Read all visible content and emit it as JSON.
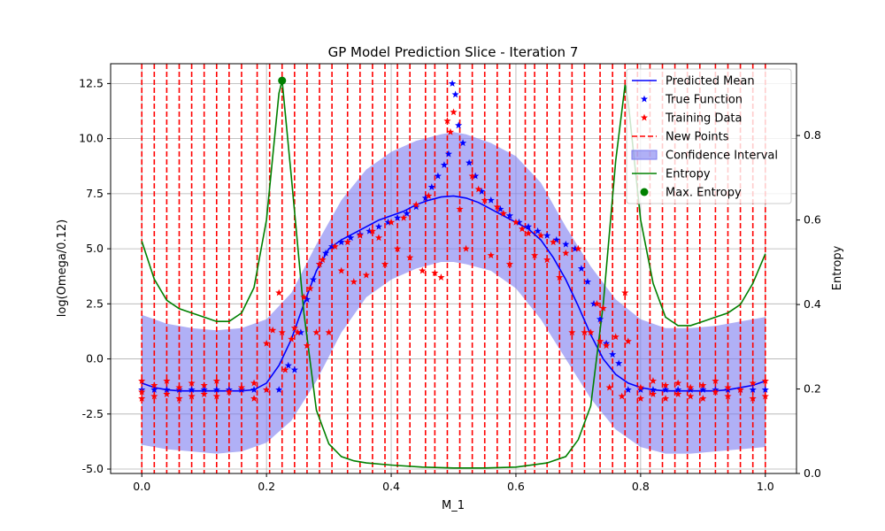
{
  "chart_data": {
    "type": "line",
    "title": "GP Model Prediction Slice - Iteration 7",
    "xlabel": "M_1",
    "ylabel": "log(Omega/0.12)",
    "y2label": "Entropy",
    "xlim": [
      -0.05,
      1.05
    ],
    "ylim": [
      -5.2,
      13.4
    ],
    "y2lim": [
      0,
      0.97
    ],
    "grid": true,
    "legend_position": "top-right",
    "x_ticks": [
      "0.0",
      "0.2",
      "0.4",
      "0.6",
      "0.8",
      "1.0"
    ],
    "y_ticks": [
      "-5.0",
      "-2.5",
      "0.0",
      "2.5",
      "5.0",
      "7.5",
      "10.0",
      "12.5"
    ],
    "y2_ticks": [
      "0.0",
      "0.2",
      "0.4",
      "0.6",
      "0.8"
    ],
    "colors": {
      "mean": "#0000ff",
      "true": "#0000ff",
      "training": "#ff0000",
      "new_points": "#ff0000",
      "confidence_fill": "#7b7bf0",
      "entropy": "#008000",
      "max_entropy": "#008000"
    },
    "series": [
      {
        "name": "Predicted Mean",
        "style": "line",
        "x": [
          0,
          0.02,
          0.04,
          0.06,
          0.08,
          0.1,
          0.12,
          0.14,
          0.16,
          0.18,
          0.2,
          0.22,
          0.24,
          0.26,
          0.28,
          0.3,
          0.32,
          0.34,
          0.36,
          0.38,
          0.4,
          0.42,
          0.44,
          0.46,
          0.48,
          0.5,
          0.52,
          0.54,
          0.56,
          0.58,
          0.6,
          0.62,
          0.64,
          0.66,
          0.68,
          0.7,
          0.72,
          0.74,
          0.76,
          0.78,
          0.8,
          0.82,
          0.84,
          0.86,
          0.88,
          0.9,
          0.92,
          0.94,
          0.96,
          0.98,
          1.0
        ],
        "y": [
          -1.1,
          -1.3,
          -1.4,
          -1.45,
          -1.45,
          -1.45,
          -1.45,
          -1.45,
          -1.45,
          -1.4,
          -1.1,
          -0.3,
          0.9,
          2.5,
          4.0,
          5.0,
          5.4,
          5.7,
          6.0,
          6.3,
          6.5,
          6.7,
          7.0,
          7.2,
          7.35,
          7.4,
          7.3,
          7.1,
          6.8,
          6.5,
          6.2,
          5.9,
          5.4,
          4.6,
          3.6,
          2.4,
          1.1,
          0.0,
          -0.7,
          -1.1,
          -1.3,
          -1.4,
          -1.45,
          -1.45,
          -1.45,
          -1.45,
          -1.45,
          -1.4,
          -1.3,
          -1.2,
          -1.0
        ]
      },
      {
        "name": "True Function",
        "style": "star",
        "x": [
          0,
          0.02,
          0.04,
          0.06,
          0.08,
          0.1,
          0.12,
          0.14,
          0.16,
          0.18,
          0.2,
          0.22,
          0.235,
          0.245,
          0.255,
          0.265,
          0.275,
          0.285,
          0.295,
          0.305,
          0.32,
          0.335,
          0.35,
          0.365,
          0.38,
          0.395,
          0.41,
          0.425,
          0.44,
          0.455,
          0.465,
          0.475,
          0.485,
          0.492,
          0.498,
          0.503,
          0.508,
          0.515,
          0.525,
          0.535,
          0.545,
          0.56,
          0.575,
          0.59,
          0.605,
          0.62,
          0.635,
          0.65,
          0.665,
          0.68,
          0.695,
          0.705,
          0.715,
          0.725,
          0.735,
          0.745,
          0.755,
          0.765,
          0.78,
          0.8,
          0.82,
          0.84,
          0.86,
          0.88,
          0.9,
          0.92,
          0.94,
          0.96,
          0.98,
          1.0
        ],
        "y": [
          -1.4,
          -1.4,
          -1.4,
          -1.4,
          -1.4,
          -1.4,
          -1.4,
          -1.4,
          -1.4,
          -1.4,
          -1.4,
          -1.4,
          -0.3,
          -0.5,
          1.2,
          2.7,
          3.6,
          4.3,
          4.8,
          5.1,
          5.3,
          5.5,
          5.65,
          5.8,
          6.0,
          6.2,
          6.4,
          6.6,
          6.9,
          7.3,
          7.8,
          8.3,
          8.8,
          9.3,
          12.5,
          12.0,
          10.6,
          9.8,
          8.9,
          8.3,
          7.6,
          7.2,
          6.8,
          6.5,
          6.2,
          6.0,
          5.8,
          5.6,
          5.4,
          5.2,
          5.0,
          4.1,
          3.5,
          2.5,
          1.8,
          0.7,
          0.2,
          -0.2,
          -1.4,
          -1.4,
          -1.4,
          -1.4,
          -1.4,
          -1.4,
          -1.4,
          -1.4,
          -1.4,
          -1.4,
          -1.4,
          -1.4
        ]
      },
      {
        "name": "Training Data",
        "style": "star",
        "x": [
          0,
          0,
          0,
          0.02,
          0.02,
          0.04,
          0.04,
          0.06,
          0.06,
          0.08,
          0.08,
          0.1,
          0.1,
          0.12,
          0.12,
          0.14,
          0.16,
          0.18,
          0.18,
          0.2,
          0.2,
          0.21,
          0.22,
          0.225,
          0.23,
          0.24,
          0.245,
          0.25,
          0.26,
          0.265,
          0.27,
          0.28,
          0.285,
          0.29,
          0.3,
          0.31,
          0.32,
          0.33,
          0.34,
          0.35,
          0.36,
          0.37,
          0.38,
          0.39,
          0.4,
          0.41,
          0.42,
          0.43,
          0.44,
          0.45,
          0.46,
          0.47,
          0.48,
          0.49,
          0.495,
          0.5,
          0.51,
          0.52,
          0.53,
          0.54,
          0.55,
          0.56,
          0.57,
          0.58,
          0.59,
          0.6,
          0.61,
          0.62,
          0.63,
          0.64,
          0.65,
          0.66,
          0.67,
          0.68,
          0.69,
          0.7,
          0.71,
          0.72,
          0.73,
          0.735,
          0.74,
          0.745,
          0.75,
          0.76,
          0.77,
          0.775,
          0.78,
          0.8,
          0.8,
          0.82,
          0.82,
          0.84,
          0.84,
          0.86,
          0.86,
          0.88,
          0.88,
          0.9,
          0.9,
          0.92,
          0.92,
          0.94,
          0.94,
          0.96,
          0.98,
          0.98,
          1.0,
          1.0
        ],
        "y": [
          -1.0,
          -1.5,
          -1.8,
          -1.2,
          -1.7,
          -1.0,
          -1.6,
          -1.3,
          -1.8,
          -1.1,
          -1.7,
          -1.2,
          -1.6,
          -1.0,
          -1.7,
          -1.5,
          -1.3,
          -1.8,
          -1.1,
          -1.4,
          0.7,
          1.3,
          3.0,
          1.2,
          -0.5,
          0.9,
          1.4,
          1.2,
          2.8,
          0.6,
          3.2,
          1.2,
          4.3,
          4.5,
          1.2,
          5.1,
          4.0,
          5.3,
          3.5,
          5.6,
          3.8,
          5.8,
          5.5,
          4.3,
          6.2,
          5.0,
          6.4,
          4.6,
          7.0,
          4.0,
          7.4,
          3.9,
          3.7,
          10.8,
          10.3,
          11.2,
          6.8,
          5.0,
          8.3,
          7.7,
          7.2,
          4.7,
          6.9,
          6.6,
          4.3,
          6.2,
          5.9,
          5.7,
          4.7,
          5.6,
          4.5,
          5.3,
          3.7,
          4.8,
          1.2,
          5.0,
          1.2,
          1.2,
          2.5,
          0.8,
          2.3,
          0.6,
          -1.3,
          1.0,
          -1.7,
          3.0,
          0.8,
          -1.3,
          -1.8,
          -1.0,
          -1.6,
          -1.2,
          -1.8,
          -1.1,
          -1.6,
          -1.3,
          -1.7,
          -1.2,
          -1.8,
          -1.0,
          -1.5,
          -1.3,
          -1.7,
          -1.4,
          -1.1,
          -1.8,
          -1.0,
          -1.7
        ]
      },
      {
        "name": "New Points",
        "style": "vline",
        "x": [
          0,
          0.02,
          0.04,
          0.06,
          0.08,
          0.1,
          0.12,
          0.14,
          0.16,
          0.185,
          0.205,
          0.225,
          0.245,
          0.265,
          0.285,
          0.305,
          0.33,
          0.35,
          0.37,
          0.39,
          0.41,
          0.43,
          0.455,
          0.47,
          0.49,
          0.51,
          0.53,
          0.55,
          0.57,
          0.59,
          0.615,
          0.63,
          0.65,
          0.67,
          0.69,
          0.71,
          0.735,
          0.755,
          0.775,
          0.795,
          0.815,
          0.835,
          0.855,
          0.875,
          0.895,
          0.92,
          0.94,
          0.96,
          0.98,
          1.0
        ]
      },
      {
        "name": "Confidence Interval",
        "style": "band",
        "x": [
          0,
          0.04,
          0.08,
          0.12,
          0.16,
          0.2,
          0.24,
          0.28,
          0.32,
          0.36,
          0.4,
          0.44,
          0.48,
          0.5,
          0.52,
          0.56,
          0.6,
          0.64,
          0.68,
          0.72,
          0.76,
          0.8,
          0.84,
          0.88,
          0.92,
          0.96,
          1.0
        ],
        "lower": [
          -3.9,
          -4.1,
          -4.2,
          -4.3,
          -4.2,
          -3.8,
          -2.8,
          -1.0,
          1.2,
          2.8,
          3.6,
          4.1,
          4.4,
          4.4,
          4.3,
          4.0,
          3.2,
          1.8,
          0.0,
          -1.8,
          -3.2,
          -4.0,
          -4.3,
          -4.3,
          -4.2,
          -4.1,
          -4.0
        ],
        "upper": [
          2.0,
          1.6,
          1.4,
          1.3,
          1.4,
          1.8,
          3.0,
          5.2,
          7.2,
          8.6,
          9.4,
          9.9,
          10.2,
          10.3,
          10.2,
          9.8,
          9.2,
          8.0,
          6.0,
          4.2,
          2.7,
          1.8,
          1.4,
          1.4,
          1.5,
          1.7,
          1.9
        ]
      },
      {
        "name": "Entropy",
        "style": "line",
        "axis": "y2",
        "x": [
          0,
          0.02,
          0.04,
          0.06,
          0.08,
          0.1,
          0.12,
          0.14,
          0.16,
          0.18,
          0.2,
          0.22,
          0.225,
          0.24,
          0.26,
          0.28,
          0.3,
          0.32,
          0.34,
          0.36,
          0.4,
          0.45,
          0.5,
          0.55,
          0.6,
          0.65,
          0.68,
          0.7,
          0.72,
          0.74,
          0.76,
          0.775,
          0.78,
          0.8,
          0.82,
          0.84,
          0.86,
          0.88,
          0.9,
          0.92,
          0.94,
          0.96,
          0.98,
          1.0
        ],
        "y": [
          0.55,
          0.46,
          0.41,
          0.39,
          0.38,
          0.37,
          0.36,
          0.36,
          0.38,
          0.44,
          0.6,
          0.9,
          0.93,
          0.7,
          0.38,
          0.15,
          0.07,
          0.04,
          0.03,
          0.025,
          0.02,
          0.015,
          0.013,
          0.013,
          0.015,
          0.025,
          0.04,
          0.08,
          0.16,
          0.4,
          0.74,
          0.92,
          0.88,
          0.6,
          0.45,
          0.37,
          0.35,
          0.35,
          0.36,
          0.37,
          0.38,
          0.4,
          0.45,
          0.52
        ]
      },
      {
        "name": "Max. Entropy",
        "style": "dot",
        "axis": "y2",
        "x": [
          0.225
        ],
        "y": [
          0.93
        ]
      }
    ]
  }
}
